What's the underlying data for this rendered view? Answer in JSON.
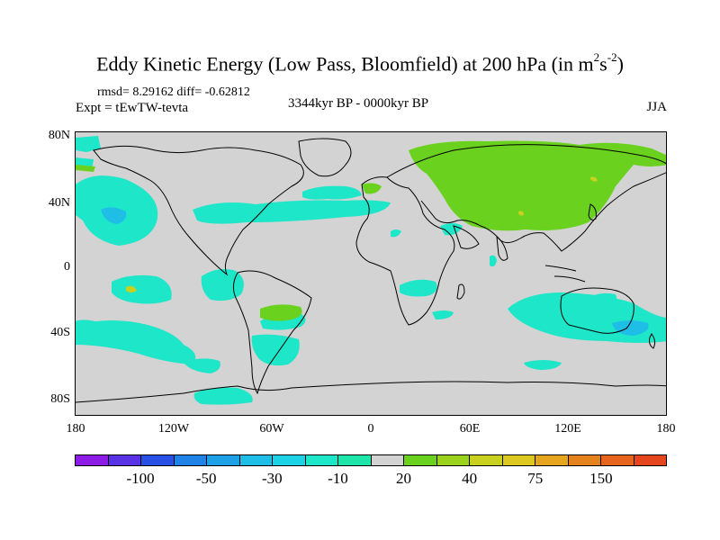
{
  "title_main": "Eddy Kinetic Energy (Low Pass, Bloomfield) at 200 hPa (in m",
  "title_sup1": "2",
  "title_mid": "s",
  "title_sup2": "-2",
  "title_end": ")",
  "stats": "rmsd= 8.29162 diff= -0.62812",
  "experiment": "Expt = tEwTW-tevta",
  "period": "3344kyr BP - 0000kyr BP",
  "season": "JJA",
  "y_ticks": [
    "80N",
    "40N",
    "0",
    "40S",
    "80S"
  ],
  "x_ticks": [
    "180",
    "120W",
    "60W",
    "0",
    "60E",
    "120E",
    "180"
  ],
  "colorbar": {
    "colors": [
      "#8c1ce6",
      "#5a32e6",
      "#2850e6",
      "#1e82e6",
      "#1ea0e6",
      "#1ebee6",
      "#1ed2e6",
      "#1ee6c8",
      "#1ee6aa",
      "#d3d3d3",
      "#6ad21e",
      "#9ad21e",
      "#c8d21e",
      "#dcc81e",
      "#e6a51e",
      "#e6821e",
      "#e6641e",
      "#e6461e"
    ],
    "labels": [
      "-100",
      "-50",
      "-30",
      "-10",
      "20",
      "40",
      "75",
      "150"
    ]
  },
  "palette": {
    "background": "#d3d3d3",
    "negative": "#1ee6c8",
    "negative_strong": "#1ebee6",
    "positive": "#6ad21e",
    "positive_strong": "#c8d21e"
  }
}
